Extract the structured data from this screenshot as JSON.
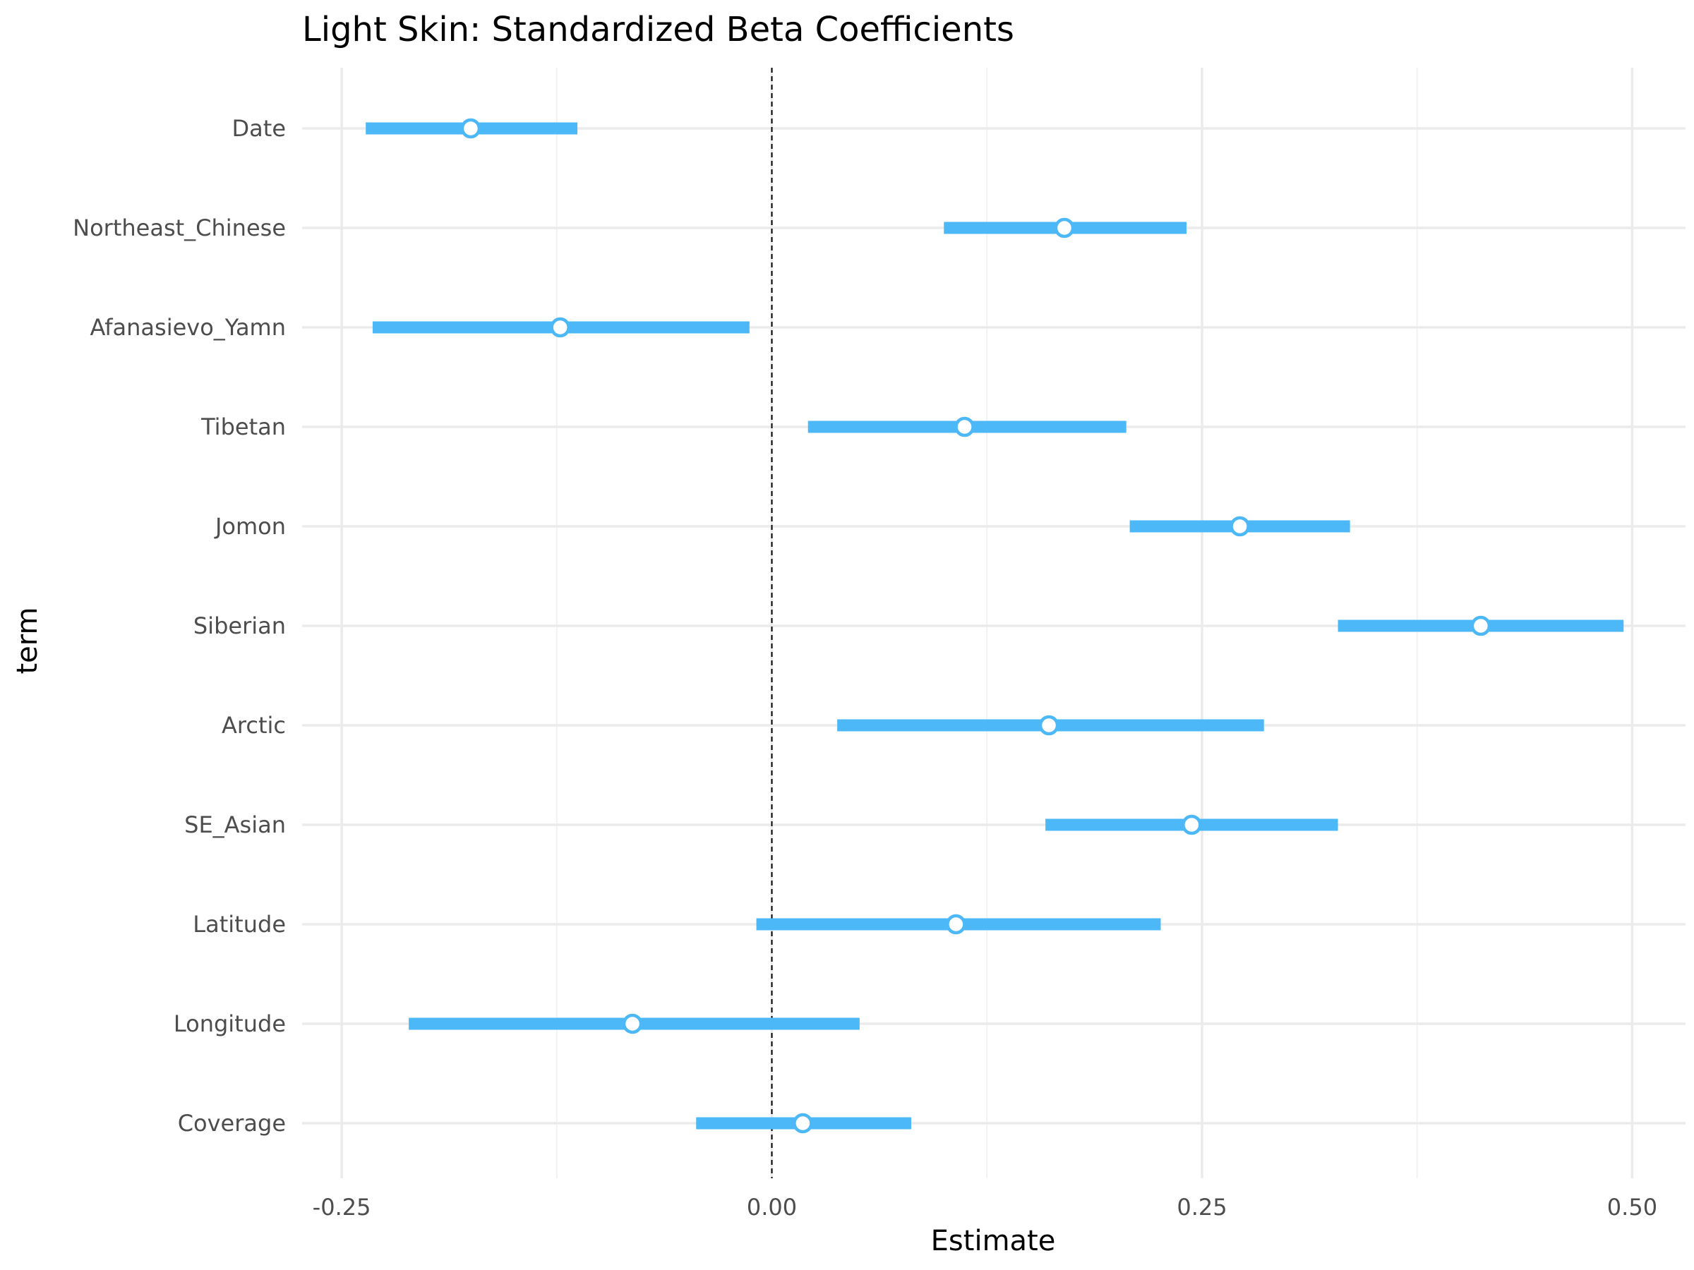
{
  "chart_data": {
    "type": "scatter",
    "title": "Light Skin: Standardized Beta Coefficients",
    "xlabel": "Estimate",
    "ylabel": "term",
    "xlim": [
      -0.273,
      0.531
    ],
    "x_ticks": [
      -0.25,
      0.0,
      0.25,
      0.5
    ],
    "x_tick_labels": [
      "-0.25",
      "0.00",
      "0.25",
      "0.50"
    ],
    "reference_line": 0,
    "grid": true,
    "legend": "none",
    "color": "#4db8f7",
    "categories": [
      "Date",
      "Northeast_Chinese",
      "Afanasievo_Yamn",
      "Tibetan",
      "Jomon",
      "Siberian",
      "Arctic",
      "SE_Asian",
      "Latitude",
      "Longitude",
      "Coverage"
    ],
    "estimates": [
      -0.175,
      0.17,
      -0.123,
      0.112,
      0.272,
      0.412,
      0.161,
      0.244,
      0.107,
      -0.081,
      0.018
    ],
    "conf_low": [
      -0.236,
      0.1,
      -0.232,
      0.021,
      0.208,
      0.329,
      0.038,
      0.159,
      -0.009,
      -0.211,
      -0.044
    ],
    "conf_high": [
      -0.113,
      0.241,
      -0.013,
      0.206,
      0.336,
      0.495,
      0.286,
      0.329,
      0.226,
      0.051,
      0.081
    ]
  }
}
